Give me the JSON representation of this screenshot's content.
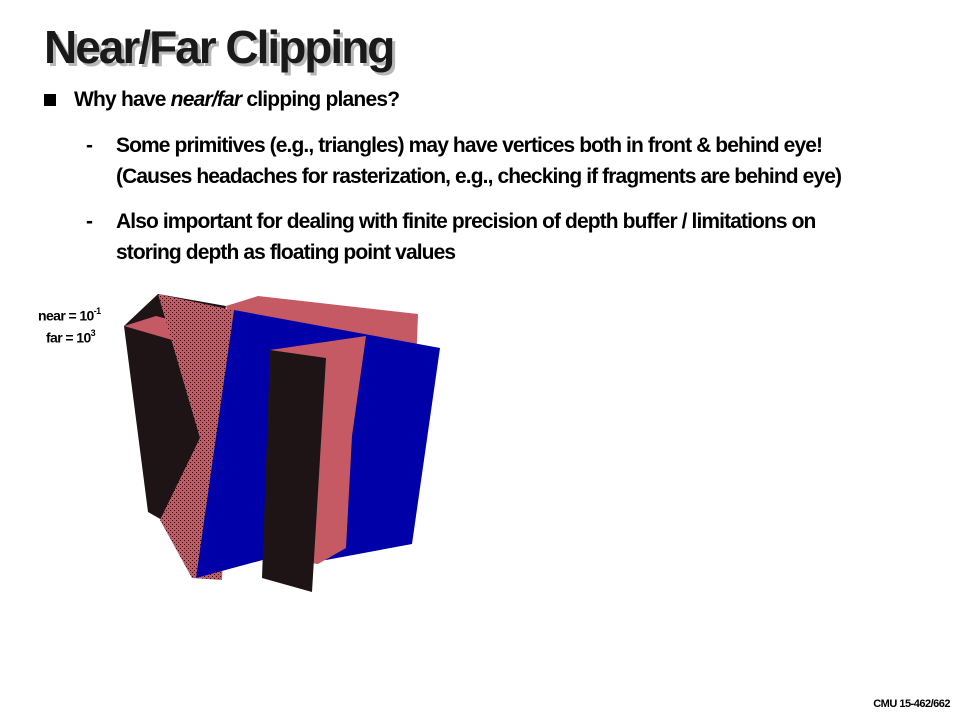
{
  "slide": {
    "title": "Near/Far Clipping",
    "bullet": {
      "prefix": "Why have ",
      "emphasis": "near/far",
      "suffix": " clipping planes?"
    },
    "subbullets": [
      {
        "dash": "-",
        "lines": [
          "Some primitives (e.g., triangles) may have vertices both in front & behind eye!",
          "(Causes headaches for rasterization, e.g., checking if fragments are behind eye)"
        ]
      },
      {
        "dash": "-",
        "lines": [
          "Also important for dealing with finite precision of depth buffer / limitations on",
          "storing depth as floating point values"
        ]
      }
    ],
    "figure": {
      "near_label": "near = 10",
      "near_exponent": "-1",
      "far_label": "far = 10",
      "far_exponent": "3"
    },
    "footer": "CMU 15-462/662"
  },
  "colors": {
    "blue": "#0000a8",
    "pink": "#c55a64",
    "dark": "#1e1416"
  }
}
